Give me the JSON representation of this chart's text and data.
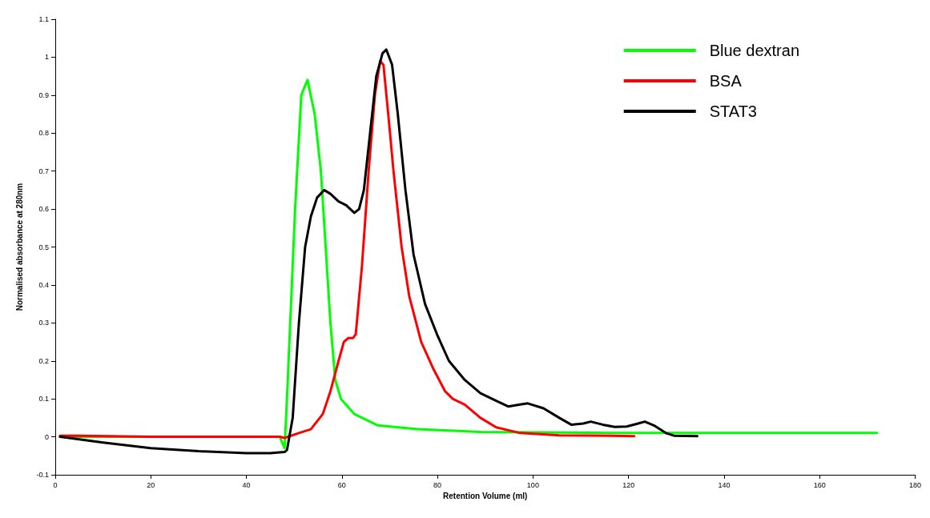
{
  "chart_data": {
    "type": "line",
    "xlabel": "Retention Volume (ml)",
    "ylabel": "Normalised absorbance at 280nm",
    "xlim": [
      0,
      180
    ],
    "xticks": [
      0,
      20,
      40,
      60,
      80,
      100,
      120,
      140,
      160,
      180
    ],
    "ylim": [
      -0.1,
      1.1
    ],
    "yticks": [
      -0.1,
      0,
      0.1,
      0.2,
      0.3,
      0.4,
      0.5,
      0.6,
      0.7,
      0.8,
      0.9,
      1,
      1.1
    ],
    "grid": false,
    "legend": "top right",
    "marker": "none",
    "line_style": "solid",
    "series": [
      {
        "name": "Blue dextran",
        "color": "#00ff00",
        "x": [
          1,
          20,
          40,
          47,
          48,
          48.5,
          50.2,
          51.5,
          52.8,
          54.3,
          55.6,
          56.6,
          57.6,
          58.6,
          59.8,
          62.6,
          67.5,
          75.8,
          89,
          120,
          150,
          172
        ],
        "values": [
          0,
          0,
          0,
          0,
          -0.03,
          0.1,
          0.6,
          0.9,
          0.94,
          0.85,
          0.7,
          0.5,
          0.3,
          0.15,
          0.1,
          0.06,
          0.03,
          0.02,
          0.013,
          0.01,
          0.01,
          0.01
        ]
      },
      {
        "name": "BSA",
        "color": "#ff0000",
        "x": [
          1,
          5,
          20,
          47,
          48,
          51,
          53.5,
          56,
          57.6,
          59.3,
          60.4,
          61.3,
          62.3,
          62.9,
          64.2,
          65.6,
          66.9,
          68,
          68.7,
          69.7,
          70.8,
          72.5,
          74.1,
          76.6,
          79.1,
          81.6,
          83.2,
          85.7,
          89,
          92.3,
          97.3,
          105.5,
          121.2
        ],
        "values": [
          0.003,
          0.003,
          0,
          0,
          -0.003,
          0.01,
          0.02,
          0.06,
          0.12,
          0.2,
          0.25,
          0.26,
          0.26,
          0.27,
          0.45,
          0.7,
          0.9,
          0.99,
          0.98,
          0.85,
          0.7,
          0.5,
          0.37,
          0.25,
          0.18,
          0.12,
          0.1,
          0.085,
          0.05,
          0.025,
          0.01,
          0.004,
          0.002
        ]
      },
      {
        "name": "STAT3",
        "color": "#000000",
        "x": [
          1,
          10,
          20,
          30,
          40,
          45,
          48,
          48.5,
          49.7,
          51,
          52.3,
          53.5,
          54.8,
          56.3,
          57.6,
          59.3,
          60.9,
          62.6,
          63.6,
          64.6,
          65.9,
          67.2,
          68.5,
          69.3,
          70.5,
          71.7,
          73.3,
          75,
          77.4,
          79.9,
          82.4,
          85.7,
          89,
          92.3,
          94.8,
          97.3,
          98.9,
          102.2,
          105.5,
          108,
          110.5,
          112.1,
          114.6,
          117.1,
          119.6,
          122,
          123.4,
          125.3,
          127.8,
          129.5,
          134.4
        ],
        "values": [
          0,
          -0.015,
          -0.03,
          -0.038,
          -0.043,
          -0.043,
          -0.04,
          -0.035,
          0.05,
          0.3,
          0.5,
          0.58,
          0.63,
          0.65,
          0.64,
          0.62,
          0.61,
          0.59,
          0.6,
          0.65,
          0.8,
          0.95,
          1.01,
          1.02,
          0.98,
          0.85,
          0.65,
          0.48,
          0.35,
          0.27,
          0.2,
          0.15,
          0.115,
          0.095,
          0.08,
          0.085,
          0.088,
          0.075,
          0.05,
          0.032,
          0.035,
          0.04,
          0.032,
          0.026,
          0.027,
          0.035,
          0.04,
          0.03,
          0.01,
          0.003,
          0.002
        ]
      }
    ]
  }
}
